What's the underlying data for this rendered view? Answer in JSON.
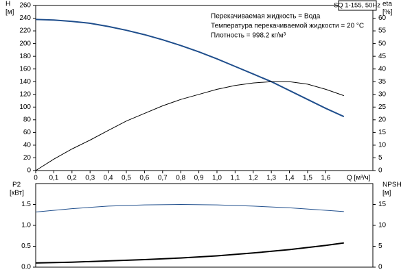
{
  "chart_data": [
    {
      "type": "line",
      "title": "SQ 1-155, 50Hz",
      "notes": [
        "Перекачиваемая жидкость = Вода",
        "Температура перекачиваемой жидкости = 20 °C",
        "Плотность = 998.2 кг/м³"
      ],
      "ylabel": "H",
      "yunit": "[м]",
      "y2label": "eta",
      "y2unit": "[%]",
      "xlabel": "Q [м³/ч]",
      "x": [
        0,
        0.1,
        0.2,
        0.3,
        0.4,
        0.5,
        0.6,
        0.7,
        0.8,
        0.9,
        1.0,
        1.1,
        1.2,
        1.3,
        1.4,
        1.5,
        1.6,
        1.7
      ],
      "series": [
        {
          "name": "H",
          "color": "#1f4e8c",
          "values": [
            238,
            237,
            235,
            232,
            227,
            221,
            214,
            206,
            197,
            187,
            176,
            164,
            152,
            140,
            126,
            112,
            98,
            85
          ]
        },
        {
          "name": "eta",
          "color": "#000000",
          "axis": "y2",
          "values": [
            0,
            4.5,
            8.5,
            12,
            15.8,
            19.5,
            22.5,
            25.5,
            28,
            30,
            32,
            33.5,
            34.5,
            35,
            35,
            34,
            32,
            29.5
          ]
        }
      ],
      "xlim": [
        0,
        1.86
      ],
      "xticks": [
        0,
        {
          "value": 0.1,
          "label": "0,1"
        },
        {
          "value": 0.2,
          "label": "0,2"
        },
        {
          "value": 0.3,
          "label": "0,3"
        },
        {
          "value": 0.4,
          "label": "0,4"
        },
        {
          "value": 0.5,
          "label": "0,5"
        },
        {
          "value": 0.6,
          "label": "0,6"
        },
        {
          "value": 0.7,
          "label": "0,7"
        },
        {
          "value": 0.8,
          "label": "0,8"
        },
        {
          "value": 0.9,
          "label": "0,9"
        },
        {
          "value": 1.0,
          "label": "1,0"
        },
        {
          "value": 1.1,
          "label": "1,1"
        },
        {
          "value": 1.2,
          "label": "1,2"
        },
        {
          "value": 1.3,
          "label": "1,3"
        },
        {
          "value": 1.4,
          "label": "1,4"
        },
        {
          "value": 1.5,
          "label": "1,5"
        },
        {
          "value": 1.6,
          "label": "1,6"
        }
      ],
      "ylim": [
        0,
        260
      ],
      "yticks": [
        0,
        20,
        40,
        60,
        80,
        100,
        120,
        140,
        160,
        180,
        200,
        220,
        240,
        260
      ],
      "y2lim": [
        0,
        65
      ],
      "y2ticks": [
        0,
        5,
        10,
        15,
        20,
        25,
        30,
        35,
        40,
        45,
        50,
        55,
        60
      ]
    },
    {
      "type": "line",
      "ylabel": "P2",
      "yunit": "[кВт]",
      "y2label": "NPSH",
      "y2unit": "[м]",
      "x": [
        0,
        0.2,
        0.4,
        0.6,
        0.8,
        1.0,
        1.2,
        1.4,
        1.6,
        1.7
      ],
      "series": [
        {
          "name": "P2",
          "color": "#000000",
          "values": [
            0.1,
            0.12,
            0.15,
            0.18,
            0.22,
            0.27,
            0.34,
            0.42,
            0.52,
            0.58
          ]
        },
        {
          "name": "NPSH",
          "color": "#1f4e8c",
          "axis": "y2",
          "values": [
            13.2,
            14.0,
            14.6,
            14.9,
            15.0,
            14.9,
            14.6,
            14.2,
            13.6,
            13.3
          ]
        }
      ],
      "xlim": [
        0,
        1.86
      ],
      "ylim": [
        0,
        2
      ],
      "yticks": [
        {
          "value": 0,
          "label": "0.0"
        },
        0.5,
        {
          "value": 1,
          "label": "1.0"
        },
        1.5
      ],
      "y2lim": [
        0,
        20
      ],
      "y2ticks": [
        0,
        5,
        10,
        15
      ]
    }
  ]
}
